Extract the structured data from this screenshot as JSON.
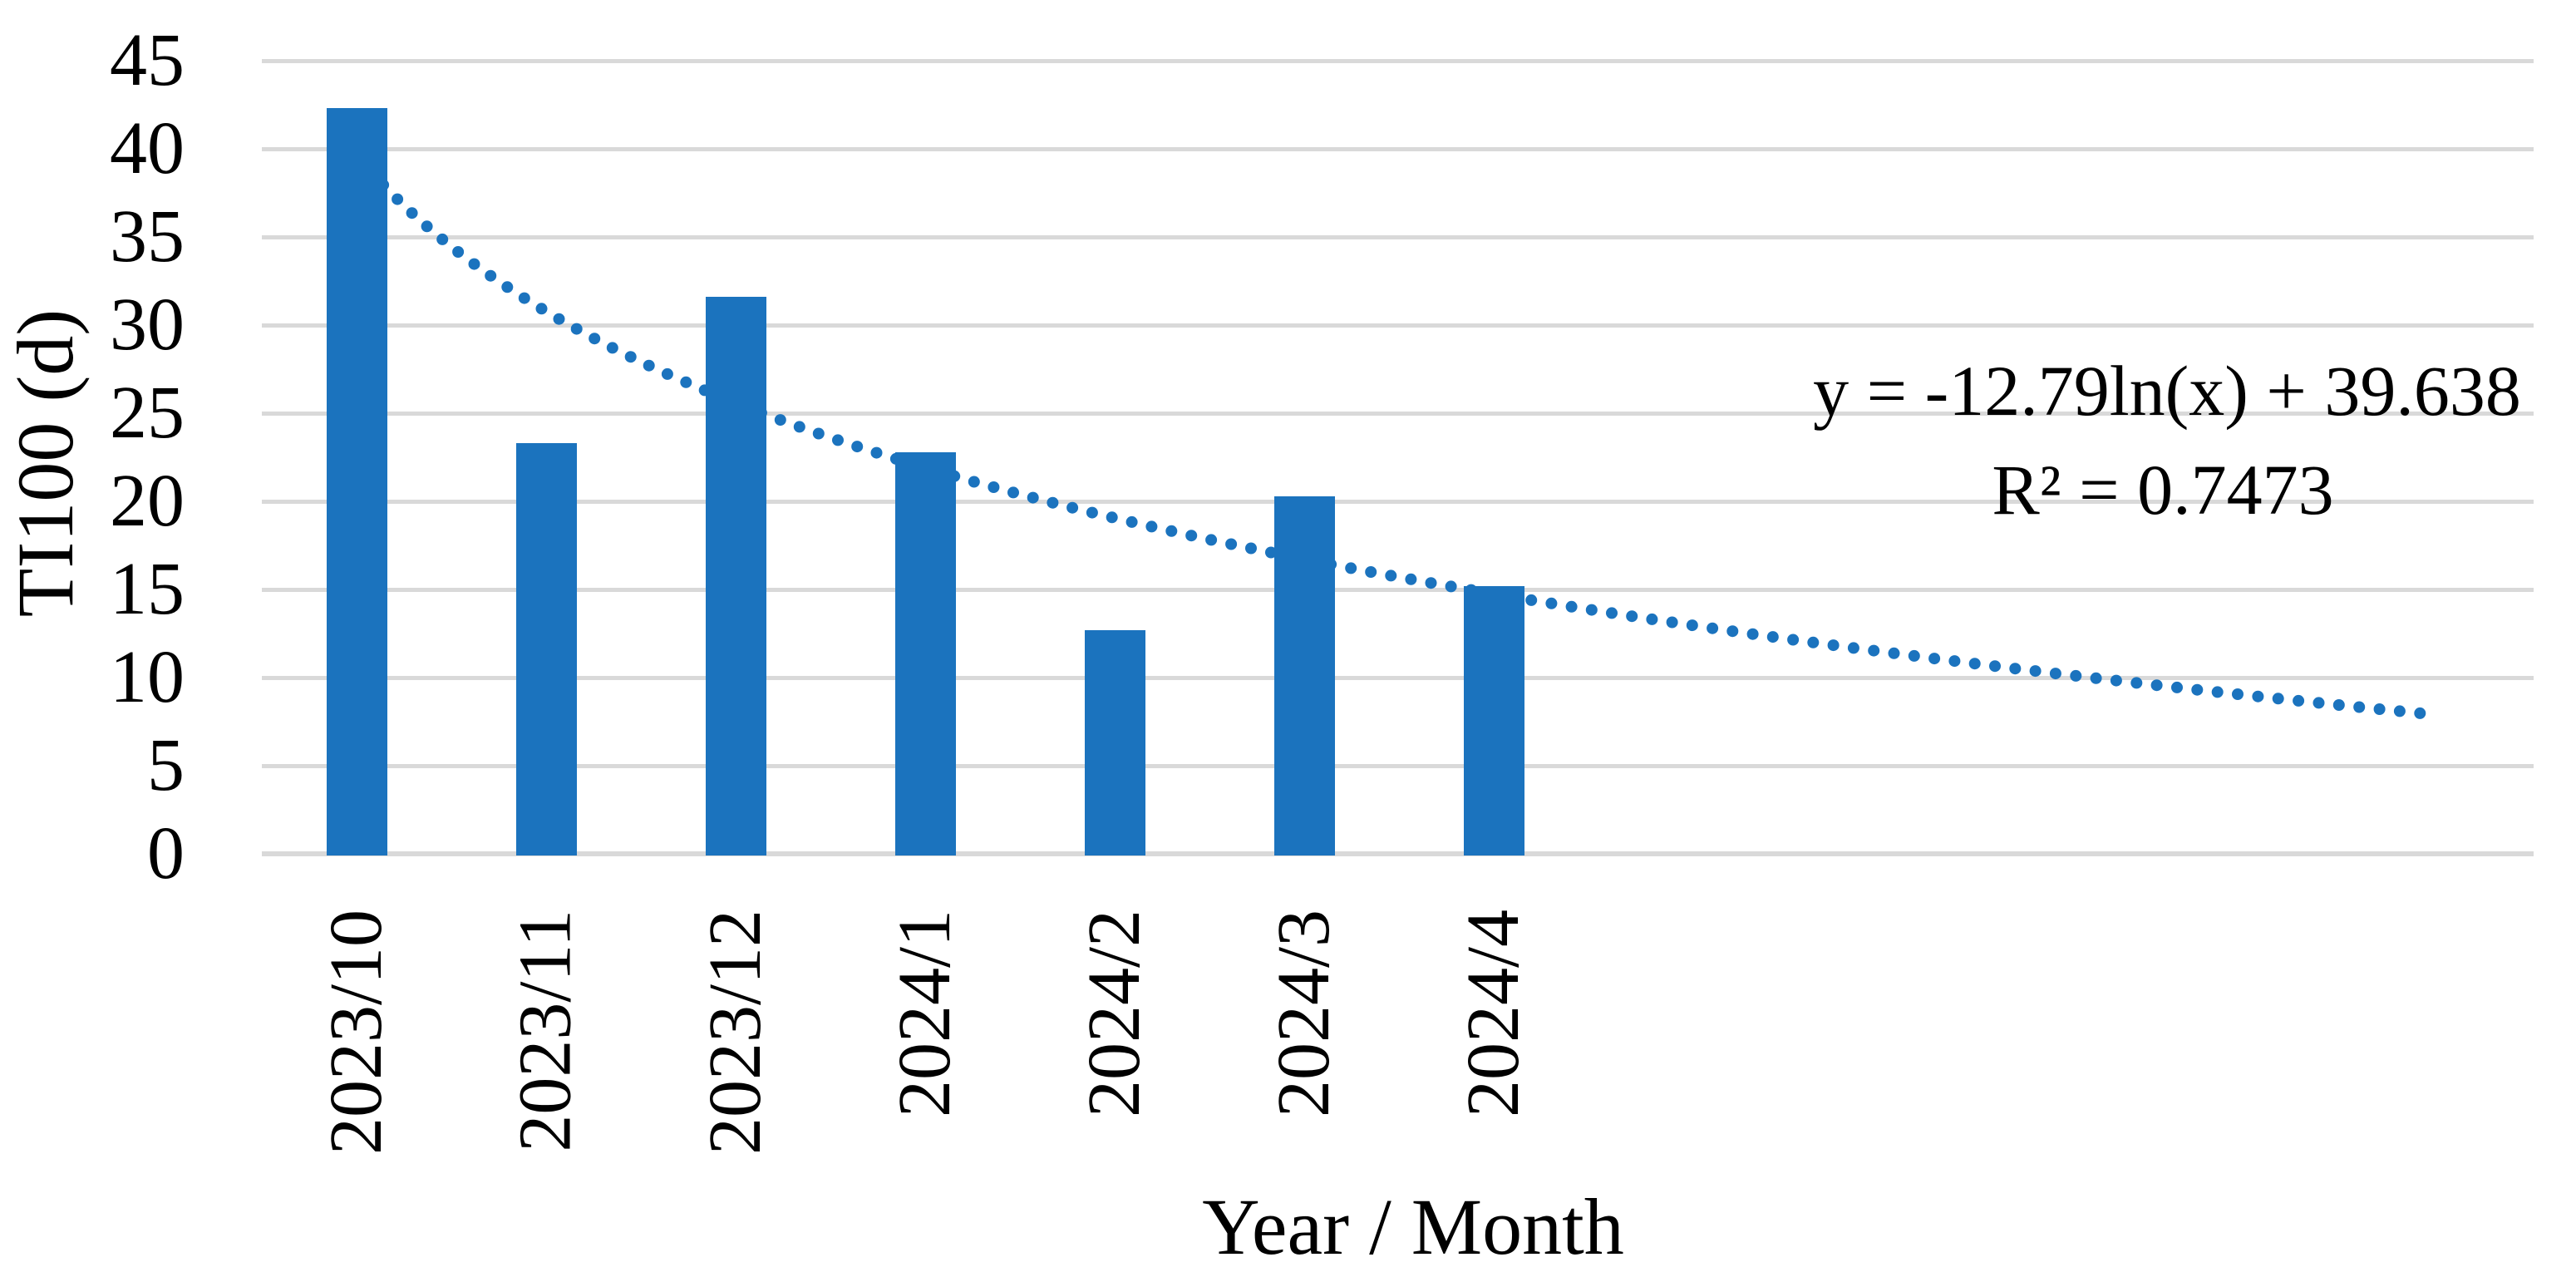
{
  "chart_data": {
    "type": "bar",
    "title": "",
    "xlabel": "Year / Month",
    "ylabel": "TI100 (d)",
    "categories": [
      "2023/10",
      "2023/11",
      "2023/12",
      "2024/1",
      "2024/2",
      "2024/3",
      "2024/4"
    ],
    "values": [
      42.3,
      23.3,
      31.6,
      22.8,
      12.7,
      20.3,
      15.2
    ],
    "y_ticks": [
      "45",
      "40",
      "35",
      "30",
      "25",
      "20",
      "15",
      "10",
      "5",
      "0"
    ],
    "ylim": [
      0,
      45
    ],
    "grid": "horizontal-only",
    "legend": "none",
    "bar_color": "#1B73BE",
    "gridline_color": "#D9D9D9",
    "axisline_color": "#D9D9D9",
    "text_color": "#000000",
    "trendline": {
      "type": "logarithmic",
      "style": "dotted",
      "color": "#1B73BE",
      "slope": -12.79,
      "intercept": 39.638,
      "x_start": 1,
      "x_end": 11.95,
      "equation_label": "y = -12.79ln(x) + 39.638",
      "r_squared_label": "R² = 0.7473"
    }
  }
}
